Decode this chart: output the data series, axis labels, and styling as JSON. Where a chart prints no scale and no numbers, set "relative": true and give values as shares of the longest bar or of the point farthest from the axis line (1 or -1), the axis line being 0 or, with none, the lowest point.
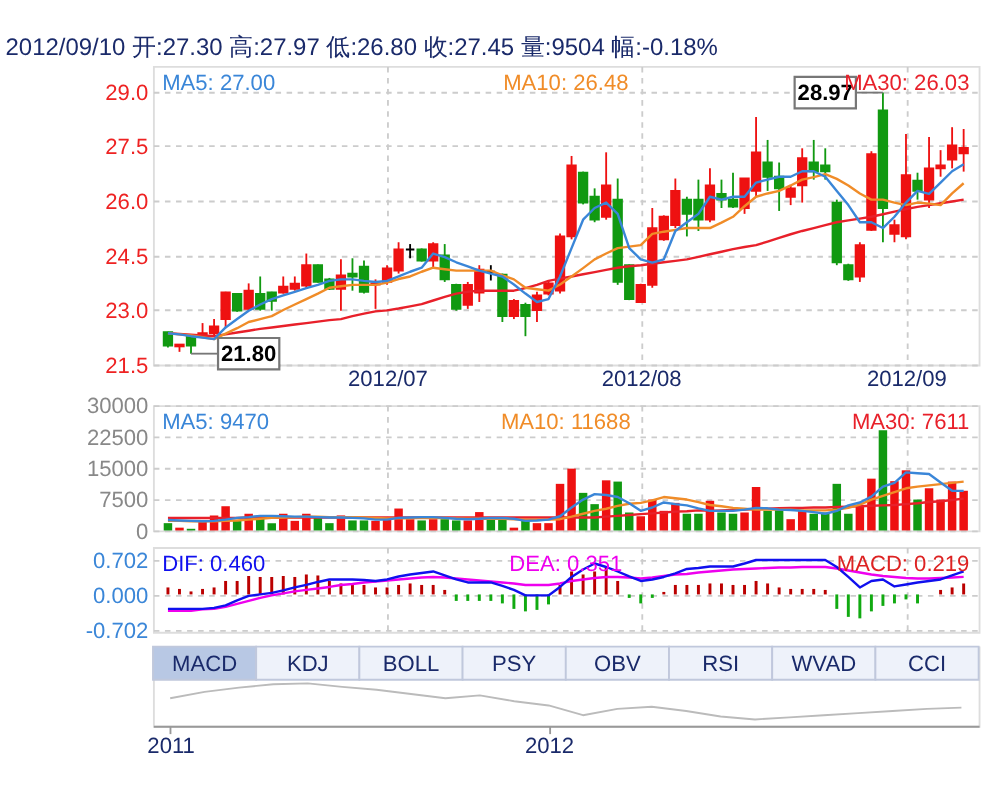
{
  "chart_data": [
    {
      "type": "candlestick",
      "title": "2012/09/10 开:27.30 高:27.97 低:26.80 收:27.45 量:9504 幅:-0.18%",
      "categories": [
        null,
        null,
        null,
        null,
        null,
        null,
        null,
        null,
        null,
        null,
        null,
        null,
        null,
        null,
        null,
        null,
        null,
        null,
        null,
        "2012/07",
        null,
        null,
        null,
        null,
        null,
        null,
        null,
        null,
        null,
        null,
        null,
        null,
        null,
        null,
        null,
        null,
        null,
        null,
        null,
        null,
        null,
        "2012/08",
        null,
        null,
        null,
        null,
        null,
        null,
        null,
        null,
        null,
        null,
        null,
        null,
        null,
        null,
        null,
        null,
        null,
        null,
        null,
        null,
        null,
        null,
        "2012/09",
        null,
        null,
        null,
        null,
        null
      ],
      "ohlc": [
        [
          22.39,
          22.4,
          21.97,
          22.02
        ],
        [
          22.0,
          22.05,
          21.85,
          22.05
        ],
        [
          22.28,
          22.3,
          21.8,
          22.02
        ],
        [
          22.28,
          22.64,
          22.23,
          22.36
        ],
        [
          22.36,
          22.75,
          22.28,
          22.55
        ],
        [
          22.75,
          23.5,
          22.5,
          23.48
        ],
        [
          23.44,
          23.45,
          22.95,
          22.98
        ],
        [
          23.03,
          23.73,
          22.98,
          23.53
        ],
        [
          23.44,
          23.92,
          22.98,
          23.03
        ],
        [
          23.48,
          23.5,
          22.98,
          23.25
        ],
        [
          23.48,
          23.92,
          23.45,
          23.64
        ],
        [
          23.58,
          23.92,
          23.53,
          23.72
        ],
        [
          23.67,
          24.55,
          23.61,
          24.23
        ],
        [
          24.23,
          24.25,
          23.75,
          23.77
        ],
        [
          23.84,
          23.88,
          23.55,
          23.58
        ],
        [
          23.58,
          24.39,
          22.98,
          23.95
        ],
        [
          24.0,
          24.42,
          23.53,
          23.92
        ],
        [
          24.19,
          24.36,
          23.45,
          23.5
        ],
        [
          23.7,
          23.84,
          23.03,
          23.73
        ],
        [
          23.77,
          24.23,
          23.69,
          24.14
        ],
        [
          24.08,
          24.86,
          24.0,
          24.66
        ],
        [
          24.66,
          24.81,
          24.42,
          24.66
        ],
        [
          24.66,
          24.69,
          24.33,
          24.36
        ],
        [
          24.36,
          24.86,
          24.16,
          24.81
        ],
        [
          24.5,
          24.81,
          23.77,
          23.84
        ],
        [
          23.69,
          23.72,
          22.98,
          23.03
        ],
        [
          23.14,
          23.77,
          23.03,
          23.69
        ],
        [
          23.48,
          24.23,
          23.22,
          24.11
        ],
        [
          24.05,
          24.23,
          23.81,
          24.05
        ],
        [
          23.97,
          24.0,
          22.67,
          22.83
        ],
        [
          22.83,
          23.3,
          22.75,
          23.25
        ],
        [
          23.14,
          23.2,
          22.28,
          22.83
        ],
        [
          23.0,
          23.5,
          22.67,
          23.4
        ],
        [
          23.45,
          23.8,
          23.4,
          23.73
        ],
        [
          23.53,
          25.1,
          23.45,
          25.02
        ],
        [
          25.02,
          27.23,
          24.94,
          26.97
        ],
        [
          26.77,
          26.8,
          25.9,
          25.95
        ],
        [
          26.11,
          26.34,
          25.41,
          25.48
        ],
        [
          25.56,
          27.33,
          25.48,
          26.42
        ],
        [
          26.03,
          26.61,
          23.69,
          23.77
        ],
        [
          24.23,
          24.25,
          23.27,
          23.3
        ],
        [
          23.22,
          23.72,
          23.2,
          23.69
        ],
        [
          23.69,
          25.8,
          23.61,
          25.25
        ],
        [
          24.94,
          25.6,
          24.9,
          25.56
        ],
        [
          25.33,
          26.61,
          25.25,
          26.27
        ],
        [
          26.03,
          26.11,
          25.02,
          25.64
        ],
        [
          26.03,
          26.58,
          25.17,
          25.48
        ],
        [
          25.48,
          26.89,
          25.41,
          26.42
        ],
        [
          26.19,
          26.58,
          25.8,
          26.03
        ],
        [
          26.03,
          26.77,
          25.8,
          25.84
        ],
        [
          25.8,
          26.62,
          25.64,
          26.61
        ],
        [
          26.27,
          28.3,
          26.11,
          27.33
        ],
        [
          27.05,
          27.67,
          26.27,
          26.66
        ],
        [
          26.66,
          27.05,
          25.72,
          26.34
        ],
        [
          26.11,
          26.42,
          25.88,
          26.34
        ],
        [
          26.42,
          27.44,
          25.95,
          27.17
        ],
        [
          27.05,
          27.67,
          26.58,
          26.81
        ],
        [
          26.97,
          27.44,
          26.58,
          26.81
        ],
        [
          25.95,
          26.03,
          24.23,
          24.31
        ],
        [
          24.23,
          24.27,
          23.8,
          23.84
        ],
        [
          23.92,
          24.86,
          23.77,
          24.78
        ],
        [
          25.2,
          27.36,
          25.17,
          27.28
        ],
        [
          28.48,
          28.97,
          24.86,
          25.8
        ],
        [
          25.09,
          25.48,
          24.86,
          25.33
        ],
        [
          25.02,
          27.83,
          24.94,
          26.7
        ],
        [
          26.55,
          26.77,
          26.03,
          26.27
        ],
        [
          26.03,
          27.75,
          25.8,
          26.89
        ],
        [
          26.89,
          27.39,
          26.66,
          26.97
        ],
        [
          27.13,
          28.02,
          26.89,
          27.52
        ],
        [
          27.3,
          27.97,
          26.8,
          27.45
        ]
      ],
      "colors": [
        "#119911",
        "#ee1111",
        "#119911",
        "#ee1111",
        "#ee1111",
        "#ee1111",
        "#119911",
        "#ee1111",
        "#119911",
        "#119911",
        "#ee1111",
        "#ee1111",
        "#ee1111",
        "#119911",
        "#119911",
        "#ee1111",
        "#119911",
        "#119911",
        "#ee1111",
        "#ee1111",
        "#ee1111",
        "#000000",
        "#119911",
        "#ee1111",
        "#119911",
        "#119911",
        "#ee1111",
        "#ee1111",
        "#000000",
        "#119911",
        "#ee1111",
        "#119911",
        "#ee1111",
        "#ee1111",
        "#ee1111",
        "#ee1111",
        "#119911",
        "#119911",
        "#ee1111",
        "#119911",
        "#119911",
        "#ee1111",
        "#ee1111",
        "#ee1111",
        "#ee1111",
        "#119911",
        "#119911",
        "#ee1111",
        "#119911",
        "#119911",
        "#ee1111",
        "#ee1111",
        "#119911",
        "#119911",
        "#ee1111",
        "#ee1111",
        "#119911",
        "#119911",
        "#119911",
        "#119911",
        "#ee1111",
        "#ee1111",
        "#119911",
        "#ee1111",
        "#ee1111",
        "#119911",
        "#ee1111",
        "#ee1111",
        "#ee1111",
        "#ee1111"
      ],
      "series": [
        {
          "name": "MA5: 27.00",
          "type": "line",
          "color": "#3a86d8",
          "values": [
            22.36,
            22.33,
            22.28,
            22.24,
            22.2,
            22.52,
            22.75,
            22.98,
            23.15,
            23.3,
            23.4,
            23.5,
            23.6,
            23.69,
            23.8,
            23.84,
            23.84,
            23.8,
            23.77,
            23.8,
            23.92,
            24.05,
            24.16,
            24.55,
            24.45,
            24.31,
            24.2,
            24.08,
            24.0,
            23.92,
            23.7,
            23.45,
            23.22,
            23.3,
            23.92,
            24.7,
            25.48,
            25.8,
            25.95,
            25.64,
            24.7,
            24.39,
            24.3,
            24.39,
            25.17,
            25.41,
            25.64,
            26.11,
            26.03,
            26.11,
            26.11,
            26.5,
            26.58,
            26.66,
            26.66,
            26.81,
            26.81,
            26.66,
            26.27,
            25.88,
            25.41,
            25.41,
            25.25,
            25.56,
            25.95,
            26.27,
            26.19,
            26.5,
            26.81,
            27.0
          ]
        },
        {
          "name": "MA10: 26.48",
          "type": "line",
          "color": "#f08c28",
          "values": [
            22.36,
            22.33,
            22.3,
            22.25,
            22.2,
            22.35,
            22.5,
            22.67,
            22.75,
            22.83,
            23.0,
            23.15,
            23.3,
            23.45,
            23.61,
            23.65,
            23.69,
            23.69,
            23.69,
            23.75,
            23.85,
            23.92,
            24.05,
            24.16,
            24.12,
            24.08,
            24.08,
            24.08,
            24.08,
            23.95,
            23.84,
            23.61,
            23.57,
            23.53,
            23.7,
            23.92,
            24.15,
            24.39,
            24.55,
            24.7,
            24.74,
            24.78,
            25.09,
            25.15,
            25.2,
            25.25,
            25.25,
            25.25,
            25.4,
            25.56,
            25.85,
            26.11,
            26.2,
            26.27,
            26.42,
            26.58,
            26.65,
            26.73,
            26.6,
            26.42,
            26.2,
            26.03,
            26.03,
            25.95,
            25.88,
            25.95,
            25.92,
            25.88,
            26.2,
            26.48
          ]
        },
        {
          "name": "MA30: 26.03",
          "type": "line",
          "color": "#e8202a",
          "values": [
            22.36,
            22.34,
            22.32,
            22.3,
            22.28,
            22.33,
            22.38,
            22.43,
            22.48,
            22.52,
            22.56,
            22.6,
            22.64,
            22.68,
            22.72,
            22.75,
            22.83,
            22.9,
            22.96,
            22.99,
            23.04,
            23.1,
            23.16,
            23.26,
            23.36,
            23.45,
            23.5,
            23.53,
            23.53,
            23.53,
            23.53,
            23.6,
            23.69,
            23.8,
            23.86,
            23.92,
            23.98,
            24.04,
            24.1,
            24.16,
            24.2,
            24.23,
            24.27,
            24.31,
            24.35,
            24.39,
            24.46,
            24.53,
            24.6,
            24.67,
            24.73,
            24.78,
            24.88,
            24.98,
            25.08,
            25.17,
            25.25,
            25.33,
            25.41,
            25.46,
            25.51,
            25.56,
            25.63,
            25.7,
            25.77,
            25.83,
            25.88,
            25.93,
            25.98,
            26.03
          ]
        }
      ],
      "ylim": [
        21.5,
        29.7
      ],
      "yticks": [
        {
          "value": 21.5,
          "label": "21.5"
        },
        {
          "value": 23,
          "label": "23.0"
        },
        {
          "value": 24.5,
          "label": "24.5"
        },
        {
          "value": 26,
          "label": "26.0"
        },
        {
          "value": 27.5,
          "label": "27.5"
        },
        {
          "value": 29,
          "label": "29.0"
        }
      ],
      "grid": true,
      "legend": "top",
      "annotations": [
        {
          "text": "21.80",
          "y": 21.8
        },
        {
          "text": "28.97",
          "y": 28.97
        }
      ]
    },
    {
      "type": "bar",
      "categories": [
        null,
        null,
        null,
        null,
        null,
        null,
        null,
        null,
        null,
        null,
        null,
        null,
        null,
        null,
        null,
        null,
        null,
        null,
        null,
        "2012/07",
        null,
        null,
        null,
        null,
        null,
        null,
        null,
        null,
        null,
        null,
        null,
        null,
        null,
        null,
        null,
        null,
        null,
        null,
        null,
        null,
        null,
        "2012/08",
        null,
        null,
        null,
        null,
        null,
        null,
        null,
        null,
        null,
        null,
        null,
        null,
        null,
        null,
        null,
        null,
        null,
        null,
        null,
        null,
        null,
        null,
        "2012/09",
        null,
        null,
        null,
        null,
        null
      ],
      "series": [
        {
          "type": "bar",
          "colors": [
            "#119911",
            "#ee1111",
            "#119911",
            "#ee1111",
            "#ee1111",
            "#ee1111",
            "#119911",
            "#ee1111",
            "#119911",
            "#119911",
            "#ee1111",
            "#ee1111",
            "#ee1111",
            "#119911",
            "#119911",
            "#ee1111",
            "#119911",
            "#119911",
            "#ee1111",
            "#ee1111",
            "#ee1111",
            "#ee1111",
            "#119911",
            "#ee1111",
            "#119911",
            "#119911",
            "#ee1111",
            "#ee1111",
            "#119911",
            "#119911",
            "#ee1111",
            "#119911",
            "#ee1111",
            "#ee1111",
            "#ee1111",
            "#ee1111",
            "#119911",
            "#119911",
            "#ee1111",
            "#119911",
            "#119911",
            "#ee1111",
            "#ee1111",
            "#ee1111",
            "#ee1111",
            "#119911",
            "#119911",
            "#ee1111",
            "#119911",
            "#119911",
            "#ee1111",
            "#ee1111",
            "#119911",
            "#119911",
            "#ee1111",
            "#ee1111",
            "#119911",
            "#119911",
            "#119911",
            "#119911",
            "#ee1111",
            "#ee1111",
            "#119911",
            "#ee1111",
            "#ee1111",
            "#119911",
            "#ee1111",
            "#ee1111",
            "#ee1111",
            "#ee1111"
          ],
          "values": [
            1750,
            670,
            400,
            2400,
            3600,
            5800,
            2300,
            4000,
            3400,
            1750,
            4000,
            2300,
            4000,
            3400,
            1750,
            3600,
            2400,
            2400,
            2300,
            2700,
            5250,
            2700,
            2400,
            2700,
            2700,
            2400,
            2400,
            4400,
            2700,
            2700,
            670,
            2300,
            1750,
            1750,
            11160,
            14800,
            9000,
            6300,
            12000,
            11700,
            4300,
            3400,
            7400,
            4700,
            6600,
            4000,
            4000,
            7100,
            4300,
            4000,
            4300,
            10400,
            4700,
            5100,
            2700,
            4700,
            4000,
            4300,
            11160,
            4000,
            5650,
            12400,
            24000,
            11800,
            14400,
            7400,
            10100,
            7400,
            11700,
            9504
          ]
        },
        {
          "name": "MA5: 9470",
          "type": "line",
          "color": "#3a86d8",
          "values": [
            2500,
            2400,
            2300,
            2200,
            2300,
            2600,
            3000,
            3200,
            3500,
            3500,
            3400,
            3300,
            3300,
            3200,
            3100,
            3100,
            3000,
            2900,
            2600,
            2600,
            3000,
            3100,
            3200,
            3200,
            3000,
            2800,
            2700,
            2800,
            3000,
            3000,
            2800,
            2300,
            2400,
            2600,
            3400,
            5500,
            7400,
            8700,
            8500,
            8000,
            6500,
            4700,
            5500,
            6700,
            6300,
            6000,
            5300,
            4700,
            4700,
            4700,
            5000,
            5400,
            5300,
            5000,
            4900,
            4700,
            4400,
            4000,
            4700,
            6000,
            6700,
            8100,
            10500,
            11400,
            13900,
            13700,
            13500,
            11500,
            9500,
            9470
          ]
        },
        {
          "name": "MA10: 11688",
          "type": "line",
          "color": "#f08c28",
          "values": [
            2300,
            2300,
            2200,
            2200,
            2200,
            2300,
            2400,
            2600,
            2800,
            3000,
            3100,
            3200,
            3300,
            3300,
            3200,
            3200,
            3200,
            3100,
            3000,
            2900,
            2900,
            2900,
            3000,
            3000,
            3000,
            2900,
            2800,
            2800,
            2800,
            2800,
            2700,
            2600,
            2600,
            2600,
            2700,
            3300,
            4000,
            4700,
            5200,
            5900,
            6400,
            6600,
            7200,
            8000,
            7700,
            7400,
            6800,
            6100,
            5800,
            5400,
            5200,
            5000,
            5000,
            5000,
            5000,
            4800,
            4800,
            4800,
            5000,
            5400,
            6200,
            7400,
            8300,
            9200,
            10100,
            10500,
            10800,
            11100,
            11400,
            11688
          ]
        },
        {
          "name": "MA30: 7611",
          "type": "line",
          "color": "#e8202a",
          "values": [
            3000,
            3000,
            3000,
            3000,
            3000,
            3000,
            3000,
            3100,
            3100,
            3100,
            3100,
            3100,
            3100,
            3100,
            3100,
            3100,
            3100,
            3100,
            3100,
            3100,
            3100,
            3100,
            3100,
            3100,
            3100,
            3100,
            3100,
            3100,
            3100,
            3100,
            3100,
            3100,
            3100,
            3100,
            3100,
            3100,
            3100,
            3100,
            3300,
            3500,
            3700,
            3900,
            4100,
            4300,
            4500,
            4600,
            4800,
            4700,
            4800,
            4900,
            5000,
            5100,
            5200,
            5300,
            5400,
            5400,
            5500,
            5500,
            5600,
            5700,
            5800,
            5900,
            6000,
            6100,
            6300,
            6500,
            6800,
            7000,
            7300,
            7611
          ]
        }
      ],
      "ylim": [
        0,
        30000
      ],
      "yticks": [
        0,
        7500,
        15000,
        22500,
        30000
      ],
      "grid": true,
      "legend": "top",
      "tick_labels": "y"
    },
    {
      "type": "bar",
      "categories": [
        null,
        null,
        null,
        null,
        null,
        null,
        null,
        null,
        null,
        null,
        null,
        null,
        null,
        null,
        null,
        null,
        null,
        null,
        null,
        "2012/07",
        null,
        null,
        null,
        null,
        null,
        null,
        null,
        null,
        null,
        null,
        null,
        null,
        null,
        null,
        null,
        null,
        null,
        null,
        null,
        null,
        null,
        "2012/08",
        null,
        null,
        null,
        null,
        null,
        null,
        null,
        null,
        null,
        null,
        null,
        null,
        null,
        null,
        null,
        null,
        null,
        null,
        null,
        null,
        null,
        null,
        "2012/09",
        null,
        null,
        null,
        null,
        null
      ],
      "series": [
        {
          "name": "DIF: 0.460",
          "type": "line",
          "color": "#1010ee",
          "values": [
            -0.29,
            -0.29,
            -0.29,
            -0.29,
            -0.27,
            -0.22,
            -0.12,
            -0.03,
            0.0,
            0.03,
            0.08,
            0.14,
            0.19,
            0.25,
            0.3,
            0.3,
            0.3,
            0.29,
            0.27,
            0.3,
            0.36,
            0.4,
            0.43,
            0.46,
            0.38,
            0.3,
            0.24,
            0.24,
            0.24,
            0.17,
            0.09,
            -0.02,
            -0.02,
            -0.02,
            0.15,
            0.35,
            0.5,
            0.62,
            0.55,
            0.46,
            0.36,
            0.27,
            0.3,
            0.35,
            0.42,
            0.51,
            0.53,
            0.56,
            0.56,
            0.56,
            0.62,
            0.69,
            0.69,
            0.69,
            0.69,
            0.69,
            0.69,
            0.69,
            0.55,
            0.35,
            0.14,
            0.27,
            0.3,
            0.16,
            0.2,
            0.24,
            0.27,
            0.3,
            0.38,
            0.46
          ]
        },
        {
          "name": "DEA: 0.351",
          "type": "line",
          "color": "#ee00ee",
          "values": [
            -0.33,
            -0.33,
            -0.33,
            -0.3,
            -0.29,
            -0.25,
            -0.19,
            -0.13,
            -0.07,
            -0.02,
            0.02,
            0.06,
            0.09,
            0.12,
            0.15,
            0.19,
            0.21,
            0.24,
            0.26,
            0.28,
            0.3,
            0.32,
            0.34,
            0.35,
            0.34,
            0.32,
            0.3,
            0.28,
            0.26,
            0.24,
            0.22,
            0.19,
            0.19,
            0.19,
            0.22,
            0.27,
            0.3,
            0.33,
            0.35,
            0.35,
            0.34,
            0.32,
            0.34,
            0.37,
            0.4,
            0.41,
            0.44,
            0.46,
            0.48,
            0.5,
            0.51,
            0.52,
            0.53,
            0.54,
            0.54,
            0.55,
            0.55,
            0.55,
            0.52,
            0.48,
            0.44,
            0.4,
            0.37,
            0.35,
            0.33,
            0.32,
            0.32,
            0.33,
            0.34,
            0.351
          ]
        },
        {
          "name": "MACD: 0.219",
          "type": "bar",
          "color": "#dd2222",
          "colors": [
            "#bb0000",
            "#bb0000",
            "#bb0000",
            "#bb0000",
            "#bb0000",
            "#bb0000",
            "#bb0000",
            "#bb0000",
            "#bb0000",
            "#bb0000",
            "#bb0000",
            "#bb0000",
            "#bb0000",
            "#bb0000",
            "#bb0000",
            "#bb0000",
            "#bb0000",
            "#bb0000",
            "#bb0000",
            "#bb0000",
            "#bb0000",
            "#bb0000",
            "#bb0000",
            "#bb0000",
            "#bb0000",
            "#11aa11",
            "#11aa11",
            "#11aa11",
            "#11aa11",
            "#11aa11",
            "#11aa11",
            "#11aa11",
            "#11aa11",
            "#11aa11",
            "#bb0000",
            "#bb0000",
            "#bb0000",
            "#bb0000",
            "#bb0000",
            "#bb0000",
            "#11aa11",
            "#11aa11",
            "#11aa11",
            "#bb0000",
            "#bb0000",
            "#bb0000",
            "#bb0000",
            "#bb0000",
            "#bb0000",
            "#bb0000",
            "#bb0000",
            "#bb0000",
            "#bb0000",
            "#bb0000",
            "#bb0000",
            "#bb0000",
            "#bb0000",
            "#bb0000",
            "#11aa11",
            "#11aa11",
            "#11aa11",
            "#11aa11",
            "#11aa11",
            "#11aa11",
            "#11aa11",
            "#11aa11",
            "#bb0000",
            "#bb0000",
            "#bb0000",
            "#bb0000"
          ],
          "values": [
            0.14,
            0.11,
            0.06,
            0.11,
            0.14,
            0.27,
            0.27,
            0.37,
            0.35,
            0.35,
            0.37,
            0.35,
            0.4,
            0.38,
            0.27,
            0.22,
            0.19,
            0.19,
            0.14,
            0.14,
            0.19,
            0.22,
            0.19,
            0.19,
            0.09,
            -0.13,
            -0.13,
            -0.13,
            -0.13,
            -0.18,
            -0.29,
            -0.34,
            -0.31,
            -0.2,
            0.19,
            0.46,
            0.4,
            0.46,
            0.54,
            0.27,
            -0.07,
            -0.18,
            -0.07,
            0.05,
            0.19,
            0.19,
            0.19,
            0.22,
            0.22,
            0.19,
            0.19,
            0.27,
            0.22,
            0.14,
            0.11,
            0.11,
            0.11,
            0.09,
            -0.29,
            -0.45,
            -0.48,
            -0.34,
            -0.23,
            -0.18,
            -0.1,
            -0.18,
            null,
            0.09,
            0.14,
            0.219
          ]
        }
      ],
      "ylim": [
        -0.75,
        0.95
      ],
      "yticks": [
        {
          "value": -0.702,
          "label": "-0.702"
        },
        {
          "value": 0,
          "label": "0.000"
        },
        {
          "value": 0.702,
          "label": "0.702"
        }
      ],
      "grid": true,
      "legend": "top",
      "tick_labels": "y"
    },
    {
      "type": "line",
      "relative": true,
      "color": "#bbbbbb",
      "annotations": [
        "MACD",
        "KDJ",
        "BOLL",
        "PSY",
        "OBV",
        "RSI",
        "WVAD",
        "CCI"
      ],
      "categories": [
        "2011",
        null,
        null,
        null,
        null,
        null,
        null,
        null,
        null,
        null,
        null,
        "2012",
        null,
        null,
        null,
        null,
        null,
        null,
        null,
        null,
        null,
        null,
        null,
        null
      ],
      "values": [
        0.65,
        0.8,
        0.9,
        0.98,
        1.0,
        0.92,
        0.85,
        0.75,
        0.65,
        0.72,
        0.58,
        0.48,
        0.25,
        0.4,
        0.45,
        0.35,
        0.22,
        0.15,
        0.2,
        0.25,
        0.3,
        0.35,
        0.4,
        0.43
      ]
    }
  ]
}
